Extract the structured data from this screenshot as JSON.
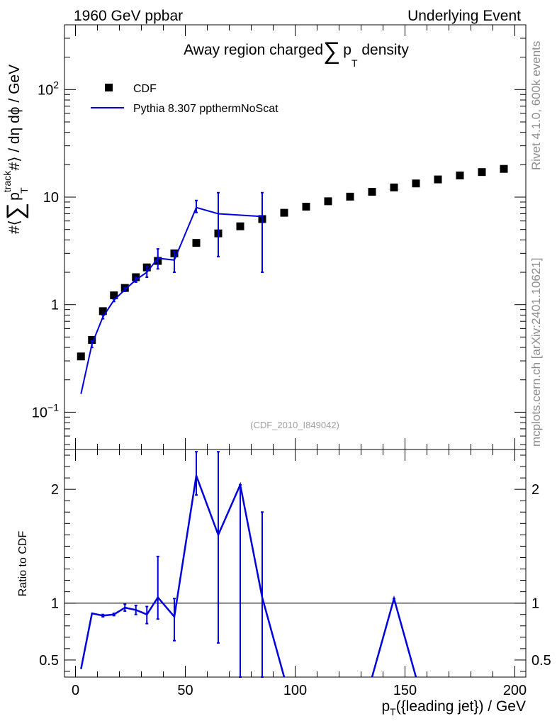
{
  "header": {
    "left": "1960 GeV ppbar",
    "right": "Underlying Event"
  },
  "side_text": {
    "rivet": "Rivet 4.1.0,  600k events",
    "site": "mcplots.cern.ch [arXiv:2401.10621]"
  },
  "watermark": "(CDF_2010_I849042)",
  "legend": {
    "cdf": "CDF",
    "pythia": "Pythia 8.307 ppthermNoScat"
  },
  "colors": {
    "data": "#000000",
    "mc": "#0000dd"
  },
  "chart_data": [
    {
      "type": "scatter",
      "title_parts": {
        "pre": "Away region charged",
        "sigma": "∑",
        "p": "p",
        "sub": "T",
        "post": " density"
      },
      "ylabel_parts": {
        "a": "#⟨",
        "sigma": "∑",
        "p": "p",
        "sup": "track",
        "sub": "T",
        "b": " #⟩ / dη dϕ / GeV"
      },
      "yscale": "log",
      "xlim": [
        -5,
        205
      ],
      "ylim": [
        0.045,
        400
      ],
      "yticks": [
        {
          "value": 0.1,
          "base": "10",
          "exp": "−1"
        },
        {
          "value": 1,
          "base": "1",
          "exp": ""
        },
        {
          "value": 10,
          "base": "10",
          "exp": ""
        },
        {
          "value": 100,
          "base": "10",
          "exp": "2"
        }
      ],
      "series": [
        {
          "name": "CDF",
          "style": "markers",
          "x": [
            2.5,
            7.5,
            12.5,
            17.5,
            22.5,
            27.5,
            32.5,
            37.5,
            45,
            55,
            65,
            75,
            85,
            95,
            105,
            115,
            125,
            135,
            145,
            155,
            165,
            175,
            185,
            195
          ],
          "y": [
            0.33,
            0.47,
            0.87,
            1.22,
            1.43,
            1.8,
            2.22,
            2.55,
            3.0,
            3.75,
            4.6,
            5.35,
            6.25,
            7.15,
            8.15,
            9.15,
            10.1,
            11.2,
            12.3,
            13.4,
            14.6,
            15.9,
            17.1,
            18.3
          ]
        },
        {
          "name": "Pythia 8.307 ppthermNoScat",
          "style": "line",
          "x": [
            2.5,
            7.5,
            12.5,
            17.5,
            22.5,
            27.5,
            32.5,
            37.5,
            45,
            55,
            65,
            85
          ],
          "y": [
            0.148,
            0.43,
            0.77,
            1.1,
            1.38,
            1.7,
            2.0,
            2.7,
            2.6,
            8.0,
            7.0,
            6.6
          ],
          "err_lo": [
            0.148,
            0.4,
            0.74,
            1.07,
            1.33,
            1.62,
            1.8,
            2.15,
            2.0,
            7.2,
            2.8,
            2.0
          ],
          "err_hi": [
            0.148,
            0.46,
            0.8,
            1.13,
            1.44,
            1.79,
            2.25,
            3.3,
            3.1,
            9.3,
            11.0,
            11.0
          ]
        }
      ]
    },
    {
      "type": "line",
      "ylabel": "Ratio to CDF",
      "xlabel_parts": {
        "p": "p",
        "sub": "T",
        "rest": "({leading jet}) / GeV"
      },
      "xlim": [
        -5,
        205
      ],
      "ylim": [
        0.35,
        2.35
      ],
      "xticks": [
        0,
        50,
        100,
        150,
        200
      ],
      "yticks": [
        0.5,
        1,
        2
      ],
      "reference_line": 1.0,
      "series": [
        {
          "name": "Pythia 8.307 ppthermNoScat",
          "x": [
            2.5,
            7.5,
            12.5,
            17.5,
            22.5,
            27.5,
            32.5,
            37.5,
            45,
            55,
            65,
            75,
            85,
            95
          ],
          "y": [
            0.42,
            0.91,
            0.89,
            0.9,
            0.96,
            0.94,
            0.9,
            1.05,
            0.88,
            2.12,
            1.6,
            2.04,
            1.05,
            0.0
          ],
          "err_lo": [
            0.42,
            0.91,
            0.88,
            0.89,
            0.93,
            0.9,
            0.82,
            0.86,
            0.67,
            1.95,
            0.65,
            0.0,
            0.0,
            0.0
          ],
          "err_hi": [
            0.42,
            0.91,
            0.9,
            0.91,
            0.99,
            0.98,
            0.97,
            1.41,
            1.04,
            2.33,
            2.33,
            2.04,
            1.8,
            0.0
          ]
        },
        {
          "name": "Pythia 8.307 ppthermNoScat",
          "x": [
            135,
            145,
            155
          ],
          "y": [
            0.0,
            1.04,
            0.0
          ],
          "err_lo": [
            0.0,
            1.02,
            0.0
          ],
          "err_hi": [
            0.0,
            1.04,
            0.0
          ]
        }
      ]
    }
  ]
}
